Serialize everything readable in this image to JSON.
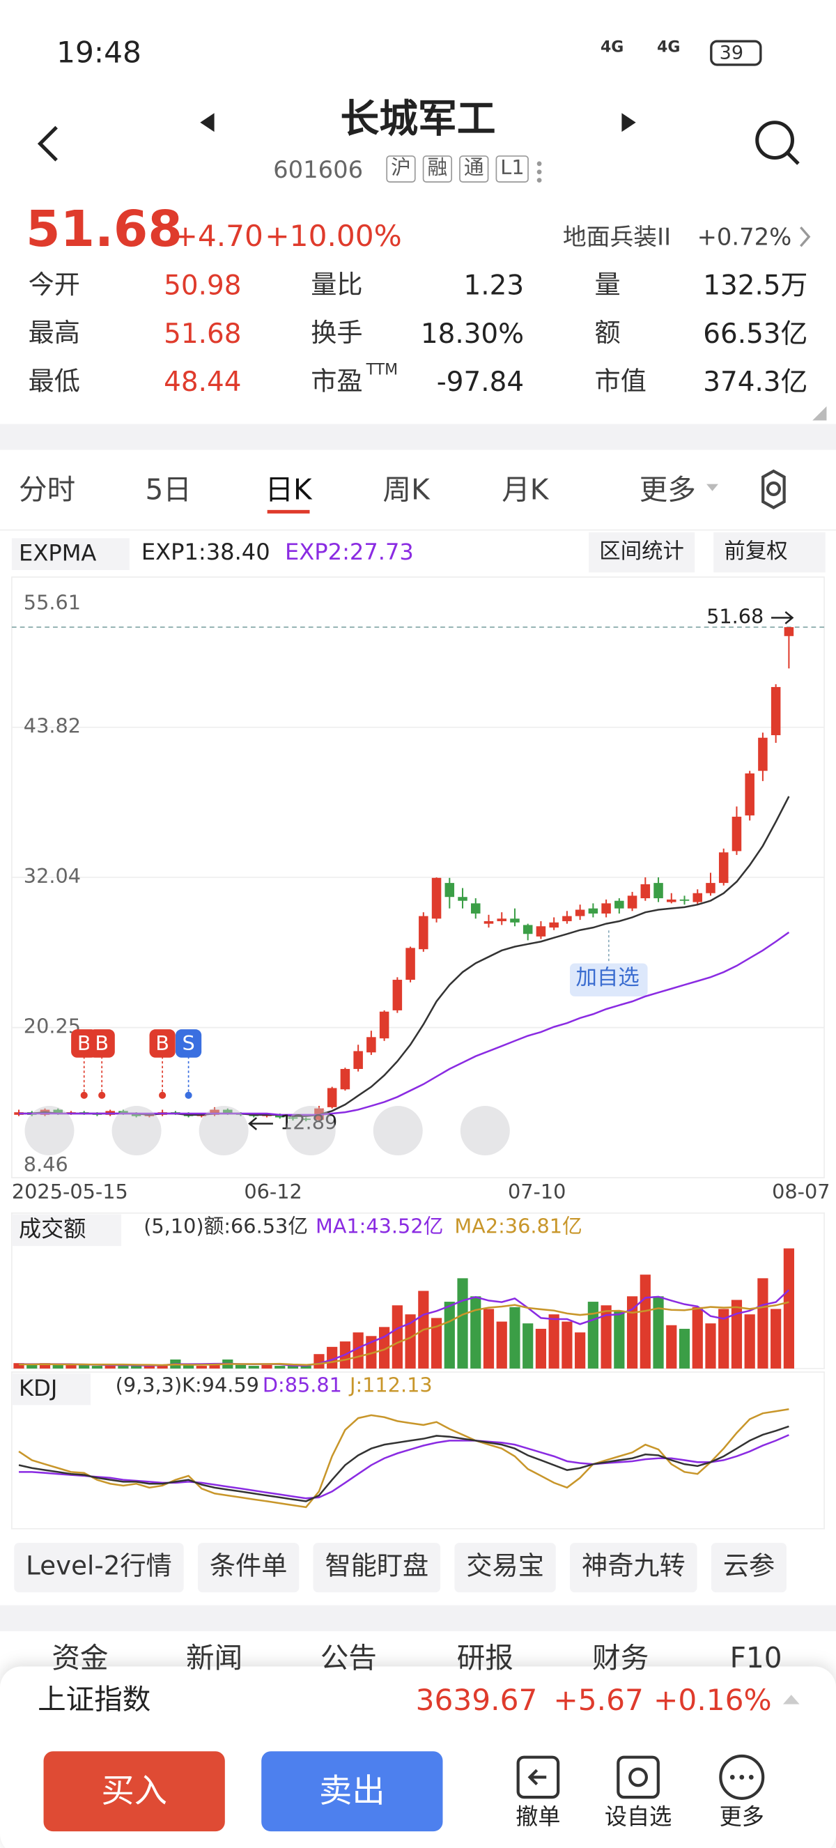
{
  "status_bar": {
    "time": "19:48",
    "network": [
      "4G",
      "4G"
    ],
    "battery": "39"
  },
  "header": {
    "title": "长城军工",
    "code": "601606",
    "tags": [
      "沪",
      "融",
      "通",
      "L1"
    ]
  },
  "quote": {
    "price": "51.68",
    "change": "+4.70",
    "change_pct": "+10.00%",
    "sector": "地面兵装II",
    "sector_change": "+0.72%"
  },
  "stats": [
    [
      {
        "label": "今开",
        "value": "50.98"
      },
      {
        "label": "量比",
        "value": "1.23"
      },
      {
        "label": "量",
        "value": "132.5万"
      }
    ],
    [
      {
        "label": "最高",
        "value": "51.68"
      },
      {
        "label": "换手",
        "value": "18.30%"
      },
      {
        "label": "额",
        "value": "66.53亿"
      }
    ],
    [
      {
        "label": "最低",
        "value": "48.44"
      },
      {
        "label": "市盈",
        "sup": "TTM",
        "value": "-97.84"
      },
      {
        "label": "市值",
        "value": "374.3亿"
      }
    ]
  ],
  "tabs": [
    "分时",
    "5日",
    "日K",
    "周K",
    "月K",
    "更多"
  ],
  "active_tab": 2,
  "kline": {
    "indicator": "EXPMA",
    "exp1_label": "EXP1:38.40",
    "exp2_label": "EXP2:27.73",
    "buttons": [
      "区间统计",
      "前复权"
    ],
    "ylim": [
      8.46,
      55.61
    ],
    "yticks": [
      55.61,
      43.82,
      32.04,
      20.25,
      8.46
    ],
    "dates": [
      "2025-05-15",
      "06-12",
      "07-10",
      "08-07"
    ],
    "last_price": "51.68",
    "low_price": "12.89",
    "markers": [
      "B",
      "B",
      "B",
      "S"
    ],
    "tooltip": "加自选",
    "candles": [
      [
        13.4,
        13.6,
        13.8,
        13.3
      ],
      [
        13.6,
        13.4,
        13.7,
        13.3
      ],
      [
        13.4,
        13.8,
        13.9,
        13.3
      ],
      [
        13.8,
        13.5,
        13.9,
        13.4
      ],
      [
        13.5,
        13.6,
        13.7,
        13.4
      ],
      [
        13.6,
        13.5,
        13.7,
        13.4
      ],
      [
        13.5,
        13.4,
        13.6,
        13.3
      ],
      [
        13.4,
        13.7,
        13.8,
        13.3
      ],
      [
        13.7,
        13.5,
        13.8,
        13.4
      ],
      [
        13.5,
        13.3,
        13.6,
        13.2
      ],
      [
        13.3,
        13.4,
        13.5,
        13.2
      ],
      [
        13.4,
        13.6,
        13.8,
        13.3
      ],
      [
        13.6,
        13.5,
        13.7,
        13.4
      ],
      [
        13.5,
        13.3,
        13.6,
        13.2
      ],
      [
        13.3,
        13.4,
        13.5,
        13.2
      ],
      [
        13.4,
        13.8,
        14.0,
        13.3
      ],
      [
        13.8,
        13.5,
        13.9,
        13.4
      ],
      [
        13.5,
        13.4,
        13.6,
        13.3
      ],
      [
        13.4,
        13.3,
        13.5,
        13.2
      ],
      [
        13.3,
        13.4,
        13.5,
        13.2
      ],
      [
        13.4,
        13.2,
        13.5,
        13.1
      ],
      [
        13.2,
        13.1,
        13.3,
        12.95
      ],
      [
        13.1,
        13.0,
        13.2,
        12.89
      ],
      [
        13.0,
        13.9,
        14.1,
        12.95
      ],
      [
        14.0,
        15.5,
        15.6,
        13.9
      ],
      [
        15.4,
        17.0,
        17.1,
        15.3
      ],
      [
        17.0,
        18.4,
        18.9,
        16.8
      ],
      [
        18.3,
        19.5,
        20.0,
        18.1
      ],
      [
        19.4,
        21.5,
        21.6,
        19.2
      ],
      [
        21.6,
        24.0,
        24.2,
        21.4
      ],
      [
        24.0,
        26.5,
        26.6,
        23.8
      ],
      [
        26.4,
        29.0,
        29.3,
        26.2
      ],
      [
        28.8,
        32.0,
        32.04,
        28.5
      ],
      [
        31.6,
        30.5,
        32.0,
        29.6
      ],
      [
        30.5,
        30.2,
        31.2,
        29.6
      ],
      [
        30.0,
        29.2,
        30.4,
        28.8
      ],
      [
        28.4,
        28.6,
        29.1,
        28.1
      ],
      [
        28.6,
        28.8,
        29.3,
        28.3
      ],
      [
        28.8,
        28.5,
        29.6,
        28.2
      ],
      [
        28.3,
        27.6,
        28.4,
        27.1
      ],
      [
        27.4,
        28.2,
        28.6,
        27.2
      ],
      [
        28.1,
        28.5,
        28.9,
        27.9
      ],
      [
        28.6,
        29.0,
        29.4,
        28.4
      ],
      [
        29.0,
        29.5,
        29.9,
        28.7
      ],
      [
        29.6,
        29.2,
        30.0,
        28.9
      ],
      [
        29.2,
        30.0,
        30.3,
        28.9
      ],
      [
        30.2,
        29.6,
        30.4,
        29.2
      ],
      [
        29.6,
        30.6,
        30.9,
        29.4
      ],
      [
        30.4,
        31.5,
        32.04,
        30.2
      ],
      [
        31.6,
        30.4,
        32.04,
        30.1
      ],
      [
        30.1,
        30.3,
        30.8,
        30.0
      ],
      [
        30.3,
        30.2,
        30.6,
        29.9
      ],
      [
        30.1,
        30.8,
        31.1,
        29.9
      ],
      [
        30.8,
        31.6,
        32.4,
        30.6
      ],
      [
        31.6,
        34.0,
        34.3,
        31.4
      ],
      [
        34.1,
        36.8,
        37.6,
        33.8
      ],
      [
        36.9,
        40.2,
        40.4,
        36.5
      ],
      [
        40.4,
        43.0,
        43.4,
        39.6
      ],
      [
        43.2,
        46.98,
        47.2,
        42.6
      ],
      [
        50.98,
        51.68,
        51.68,
        48.44
      ]
    ],
    "exp1": [
      13.5,
      13.5,
      13.6,
      13.5,
      13.5,
      13.5,
      13.5,
      13.5,
      13.5,
      13.5,
      13.4,
      13.5,
      13.5,
      13.4,
      13.4,
      13.5,
      13.5,
      13.5,
      13.4,
      13.4,
      13.4,
      13.3,
      13.3,
      13.4,
      13.7,
      14.2,
      14.9,
      15.6,
      16.5,
      17.6,
      18.9,
      20.5,
      22.3,
      23.6,
      24.6,
      25.3,
      25.8,
      26.3,
      26.6,
      26.8,
      27.0,
      27.3,
      27.6,
      27.9,
      28.1,
      28.4,
      28.6,
      28.9,
      29.3,
      29.5,
      29.6,
      29.7,
      29.9,
      30.2,
      30.8,
      31.7,
      33.0,
      34.5,
      36.4,
      38.4
    ],
    "exp2": [
      13.5,
      13.5,
      13.5,
      13.5,
      13.5,
      13.5,
      13.5,
      13.5,
      13.5,
      13.5,
      13.5,
      13.5,
      13.5,
      13.5,
      13.5,
      13.5,
      13.5,
      13.5,
      13.5,
      13.5,
      13.4,
      13.4,
      13.4,
      13.4,
      13.5,
      13.6,
      13.8,
      14.1,
      14.4,
      14.8,
      15.3,
      15.8,
      16.4,
      17.0,
      17.5,
      18.0,
      18.4,
      18.8,
      19.2,
      19.6,
      19.9,
      20.3,
      20.6,
      21.0,
      21.3,
      21.7,
      22.0,
      22.3,
      22.7,
      23.0,
      23.3,
      23.6,
      23.9,
      24.2,
      24.6,
      25.1,
      25.7,
      26.3,
      27.0,
      27.73
    ]
  },
  "volume": {
    "indicator": "成交额",
    "summary": "(5,10)额:66.53亿",
    "ma1_label": "MA1:43.52亿",
    "ma2_label": "MA2:36.81亿",
    "ylim": [
      0,
      75
    ],
    "values": [
      3,
      2,
      3,
      2,
      2,
      2,
      1.5,
      2,
      2,
      1.5,
      1.5,
      2,
      5,
      2,
      1.5,
      2,
      5,
      2,
      1.5,
      2,
      1.5,
      1.5,
      1.5,
      8,
      12,
      15,
      20,
      18,
      23,
      35,
      30,
      43,
      28,
      37,
      50,
      40,
      33,
      26,
      34,
      25,
      22,
      30,
      26,
      20,
      37,
      35,
      32,
      40,
      52,
      40,
      24,
      22,
      34,
      25,
      33,
      38,
      30,
      50,
      33,
      66.53
    ],
    "ma1": [
      2.4,
      2.4,
      2.5,
      2.4,
      2.4,
      2.2,
      2.1,
      1.9,
      1.9,
      1.8,
      1.7,
      1.8,
      2.4,
      2.4,
      2.5,
      2.6,
      2.7,
      2.5,
      2.4,
      2.5,
      2.4,
      1.7,
      1.6,
      2.8,
      4.9,
      7.7,
      11.4,
      14.6,
      17.6,
      22.2,
      25.2,
      29.8,
      31.8,
      34.6,
      37.6,
      39.6,
      37.6,
      36.8,
      38.8,
      33.6,
      28,
      27.4,
      27.4,
      24.6,
      27,
      29.6,
      30,
      32.8,
      39.2,
      39.8,
      37.6,
      35.6,
      34.4,
      29,
      27.6,
      30.4,
      32,
      35.2,
      36.8,
      43.52
    ],
    "ma2": [
      2.3,
      2.3,
      2.4,
      2.3,
      2.3,
      2.3,
      2.2,
      2.2,
      2.2,
      2.1,
      2.0,
      1.9,
      2.2,
      2.1,
      2.1,
      2.2,
      2.5,
      2.5,
      2.5,
      2.5,
      2.6,
      2.2,
      2.0,
      2.6,
      3.6,
      4.8,
      6.6,
      8.4,
      10.5,
      14.3,
      17.1,
      21.5,
      23.2,
      26.1,
      29.9,
      32.4,
      33.7,
      34.3,
      35.2,
      33.6,
      32.8,
      32.1,
      30.5,
      29.7,
      30.4,
      31.8,
      32,
      30.9,
      31.9,
      33.4,
      32.5,
      32.3,
      33.2,
      34.1,
      33.7,
      34,
      33,
      34,
      35,
      36.81
    ]
  },
  "kdj": {
    "indicator": "KDJ",
    "summary": "(9,3,3)K:94.59",
    "d_label": "D:85.81",
    "j_label": "J:112.13",
    "ylim": [
      -10,
      120
    ],
    "k": [
      55,
      52,
      50,
      48,
      46,
      45,
      42,
      40,
      38,
      38,
      36,
      36,
      38,
      40,
      35,
      32,
      30,
      28,
      26,
      24,
      22,
      20,
      18,
      24,
      40,
      55,
      65,
      72,
      76,
      78,
      80,
      82,
      85,
      84,
      82,
      80,
      78,
      76,
      72,
      65,
      60,
      55,
      50,
      52,
      56,
      58,
      60,
      62,
      66,
      65,
      60,
      56,
      54,
      58,
      64,
      72,
      80,
      86,
      90,
      94.59
    ],
    "d": [
      48,
      48,
      47,
      46,
      45,
      44,
      43,
      42,
      40,
      39,
      38,
      37,
      37,
      38,
      37,
      35,
      33,
      31,
      29,
      27,
      25,
      23,
      21,
      22,
      28,
      37,
      46,
      55,
      62,
      67,
      71,
      75,
      78,
      80,
      80,
      80,
      79,
      78,
      76,
      72,
      68,
      64,
      59,
      57,
      56,
      57,
      58,
      59,
      61,
      62,
      62,
      60,
      58,
      58,
      60,
      64,
      69,
      75,
      80,
      85.81
    ],
    "j": [
      69,
      60,
      56,
      52,
      48,
      47,
      40,
      36,
      34,
      36,
      32,
      34,
      40,
      44,
      31,
      26,
      24,
      22,
      20,
      18,
      16,
      14,
      12,
      28,
      64,
      91,
      103,
      106,
      104,
      100,
      98,
      96,
      99,
      92,
      86,
      80,
      76,
      72,
      64,
      51,
      44,
      37,
      32,
      42,
      56,
      60,
      64,
      68,
      76,
      71,
      56,
      48,
      46,
      58,
      72,
      88,
      102,
      108,
      110,
      112.13
    ]
  },
  "tools": [
    "Level-2行情",
    "条件单",
    "智能盯盘",
    "交易宝",
    "神奇九转",
    "云参"
  ],
  "section_tabs": [
    "资金",
    "新闻",
    "公告",
    "研报",
    "财务",
    "F10"
  ],
  "index": {
    "name": "上证指数",
    "value": "3639.67",
    "change": "+5.67",
    "change_pct": "+0.16%"
  },
  "actions": {
    "buy": "买入",
    "sell": "卖出",
    "icons": [
      "撤单",
      "设自选",
      "更多"
    ]
  }
}
